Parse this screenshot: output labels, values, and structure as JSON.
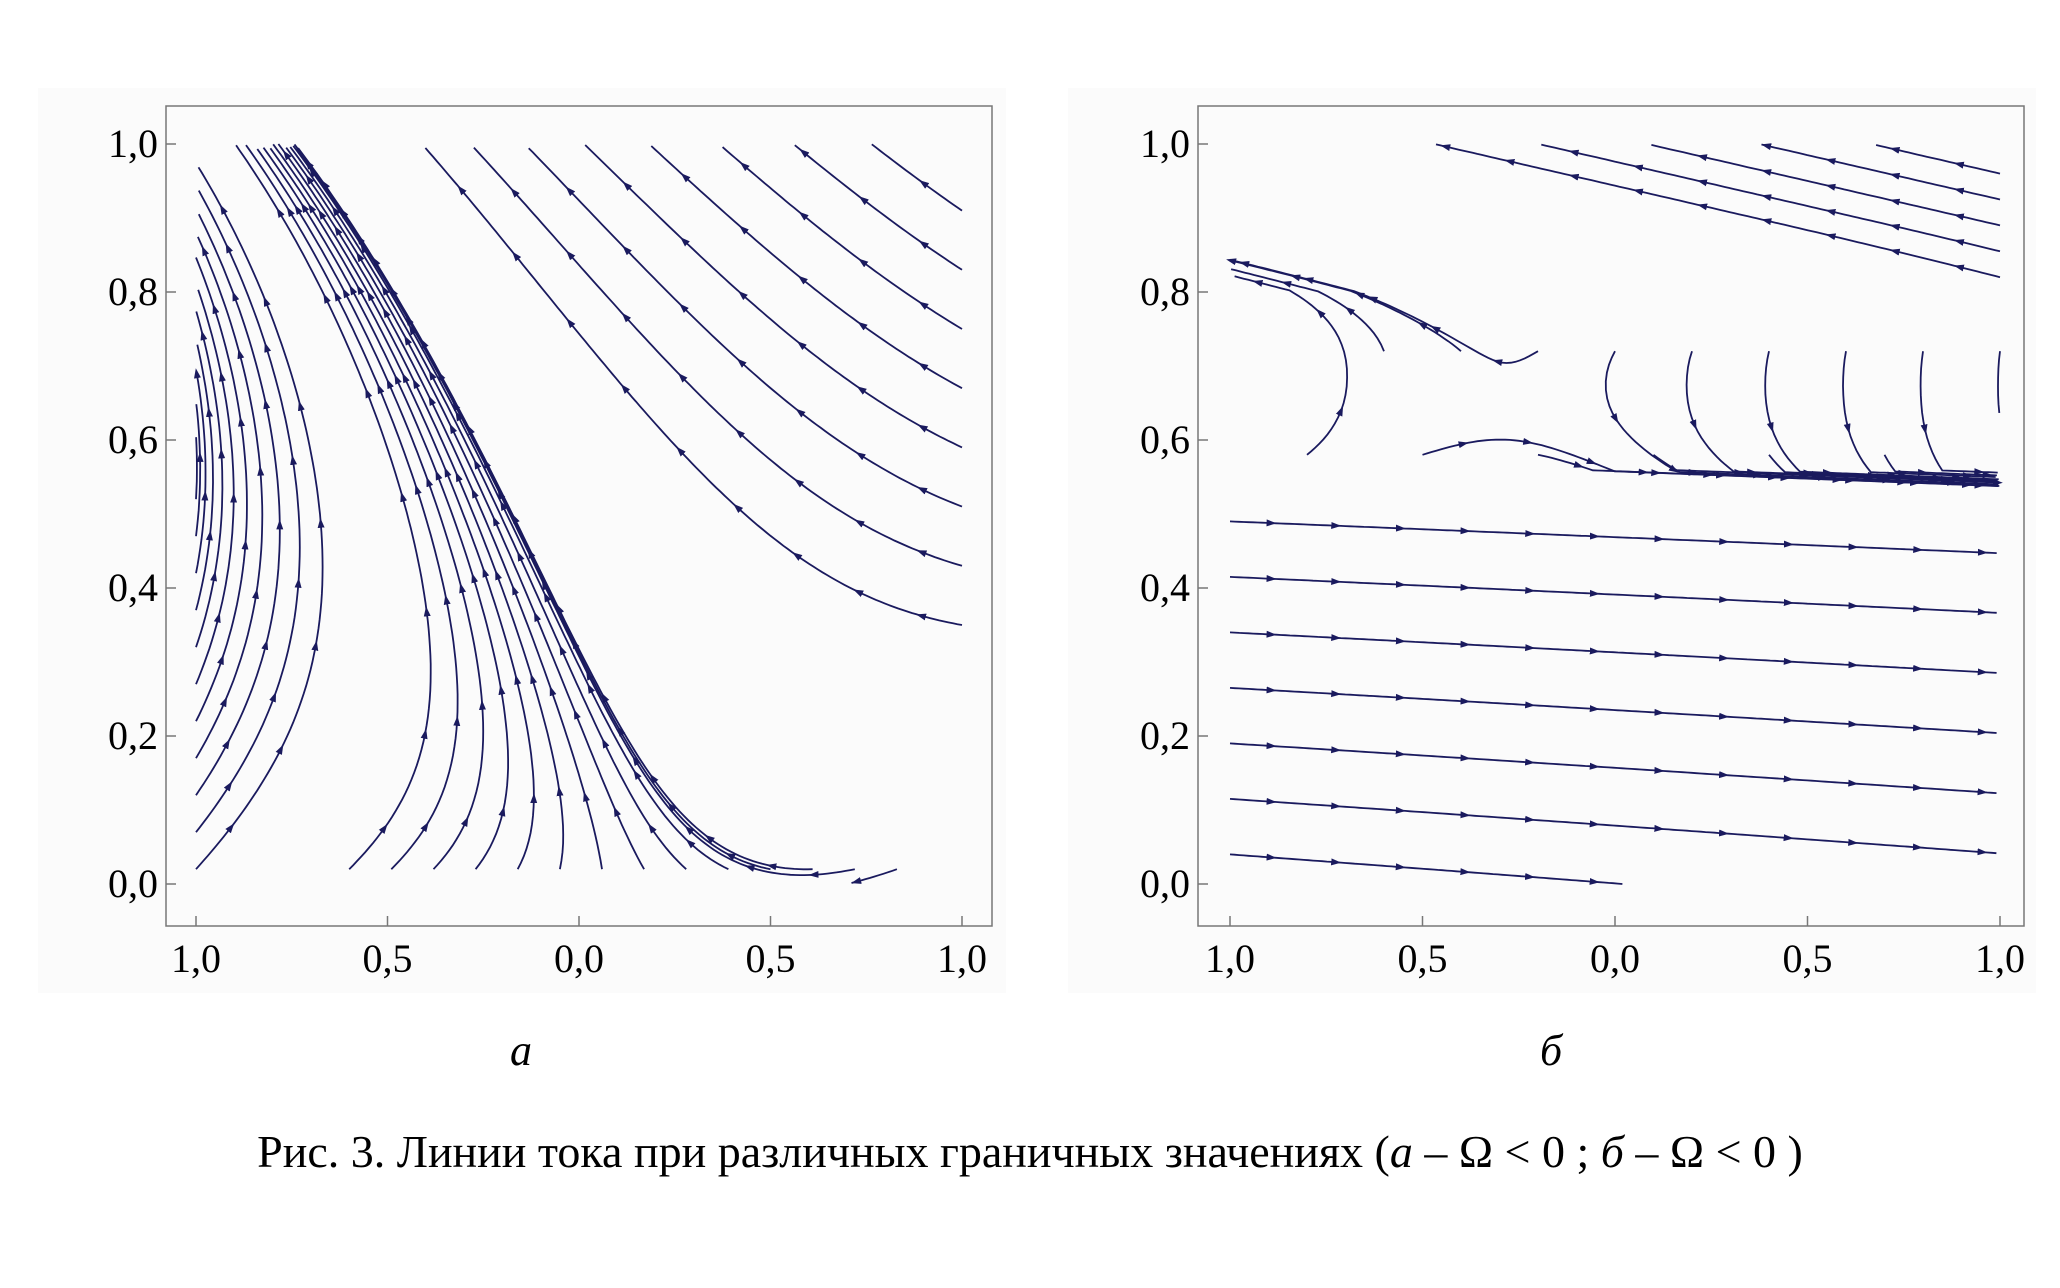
{
  "figure": {
    "caption_prefix": "Рис. 3. Линии тока при различных граничных значениях (",
    "caption_a_letter": "а",
    "caption_a_expr": " – Ω < 0 ; ",
    "caption_b_letter": "б",
    "caption_b_expr": " – Ω < 0 )"
  },
  "chart_data": [
    {
      "type": "stream",
      "panel_label": "а",
      "x_tick_labels": [
        "1,0",
        "0,5",
        "0,0",
        "0,5",
        "1,0"
      ],
      "y_tick_labels": [
        "0,0",
        "0,2",
        "0,4",
        "0,6",
        "0,8",
        "1,0"
      ],
      "xlim": [
        -1,
        1
      ],
      "ylim": [
        0,
        1
      ],
      "grid": false,
      "line_color": "#1a1a5e"
    },
    {
      "type": "stream",
      "panel_label": "б",
      "x_tick_labels": [
        "1,0",
        "0,5",
        "0,0",
        "0,5",
        "1,0"
      ],
      "y_tick_labels": [
        "0,0",
        "0,2",
        "0,4",
        "0,6",
        "0,8",
        "1,0"
      ],
      "xlim": [
        -1,
        1
      ],
      "ylim": [
        0,
        1
      ],
      "grid": false,
      "line_color": "#1a1a5e"
    }
  ]
}
